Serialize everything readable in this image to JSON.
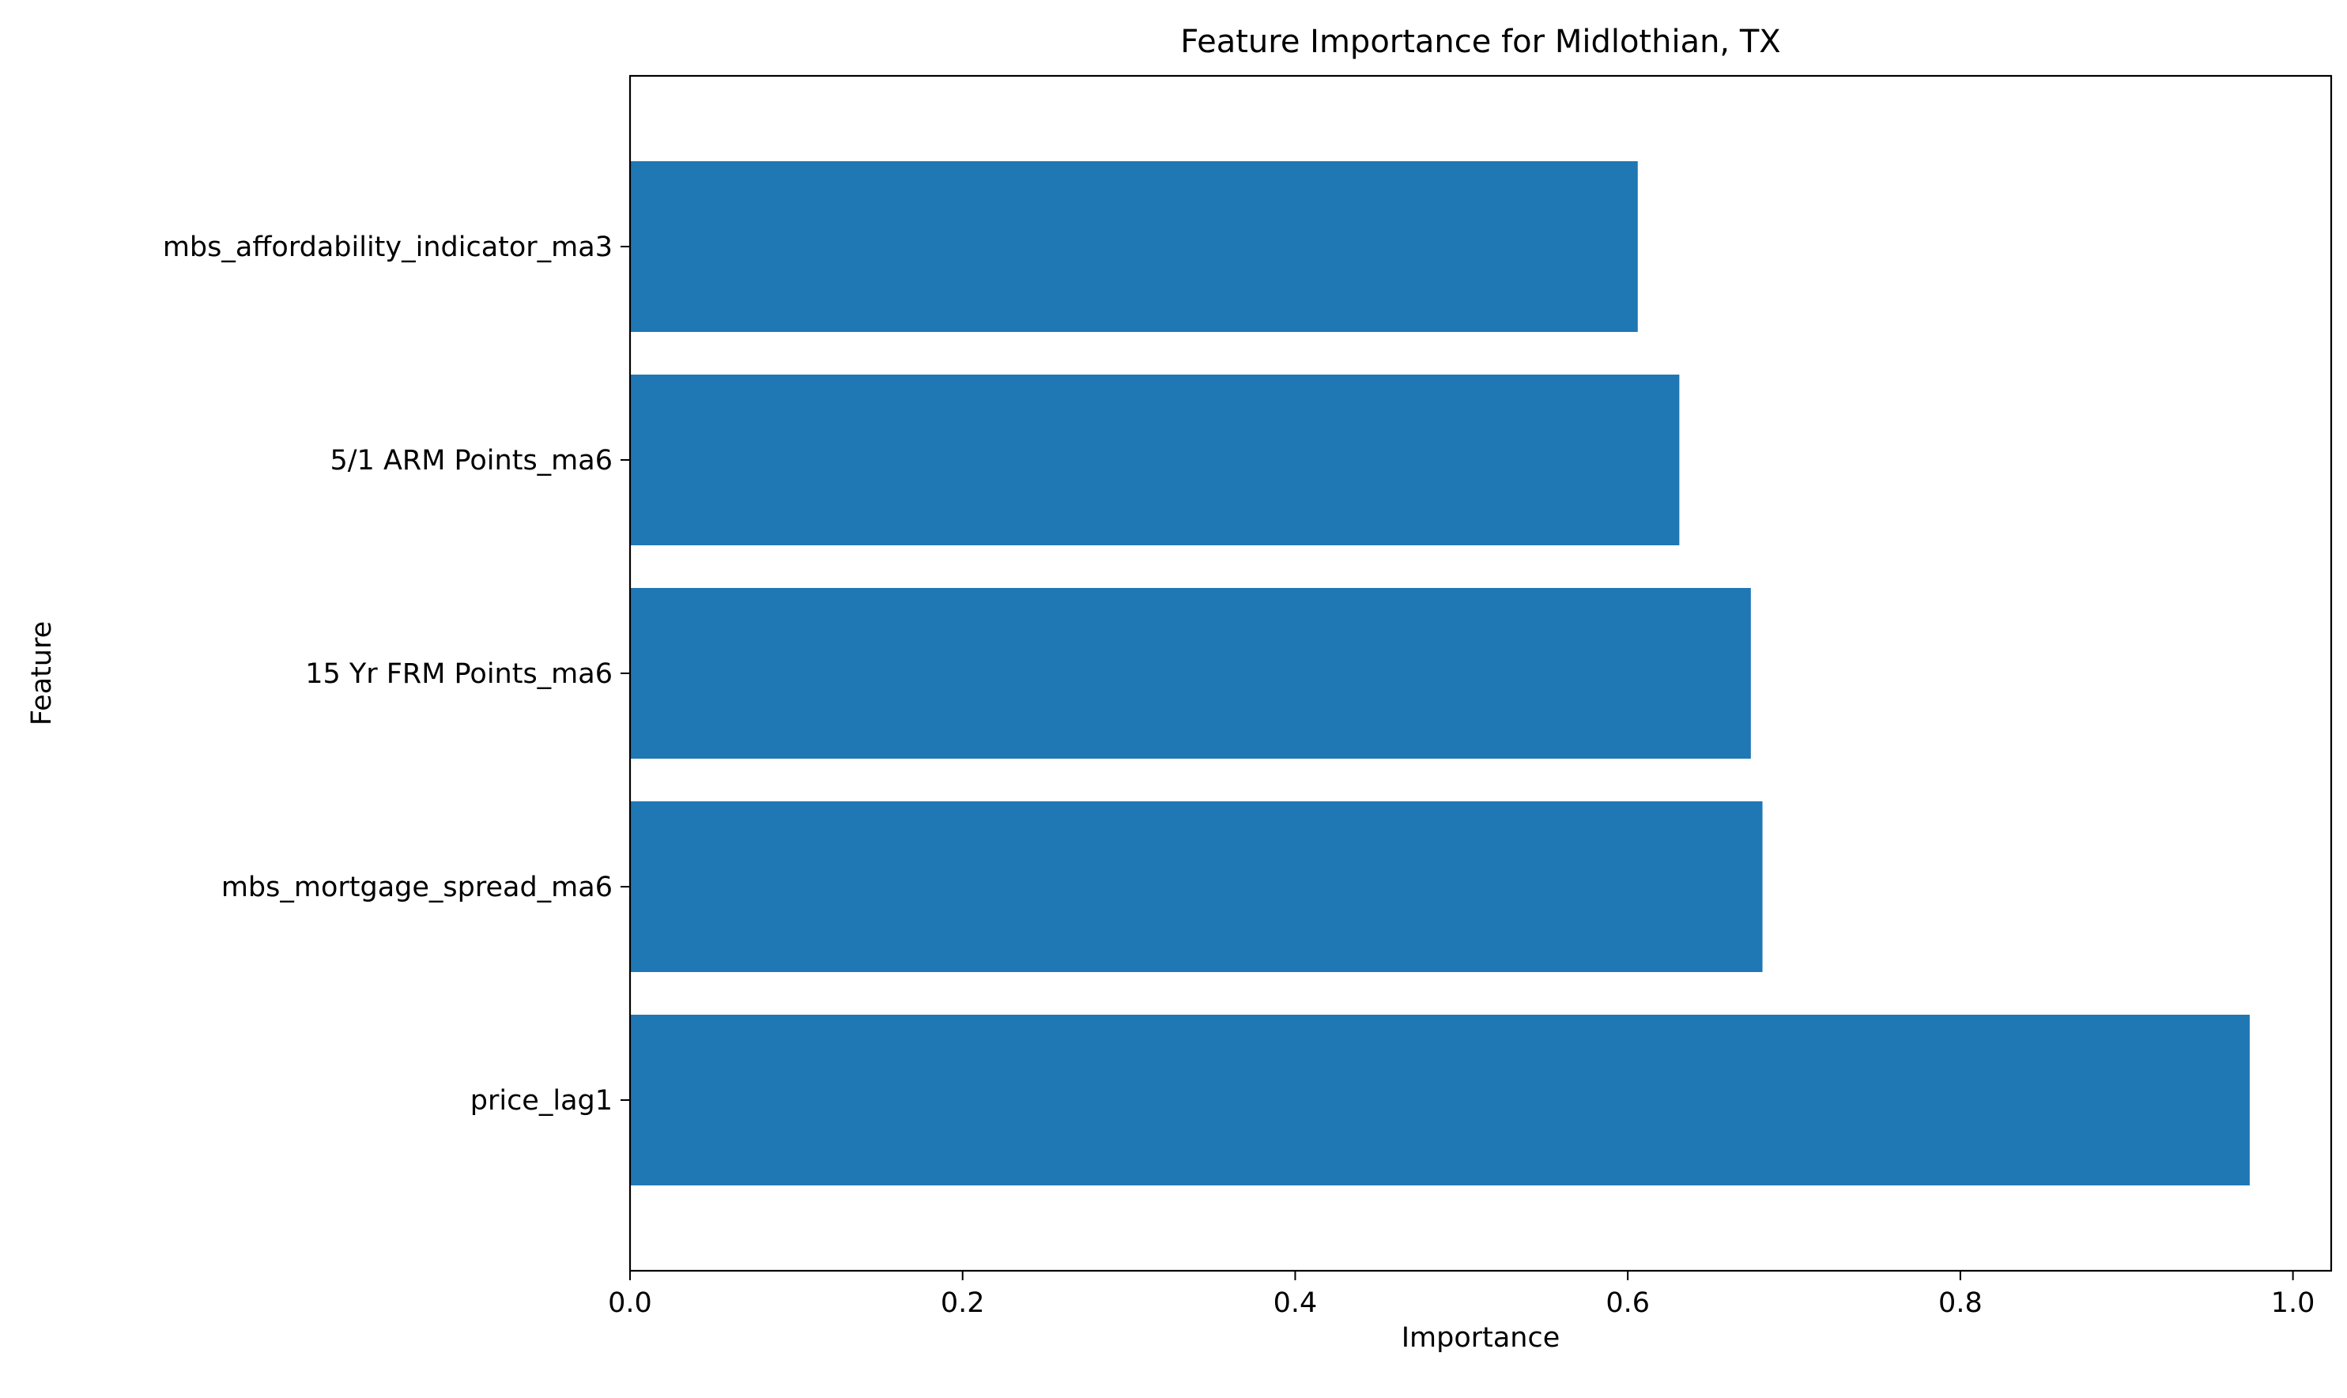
{
  "chart_data": {
    "type": "bar",
    "orientation": "horizontal",
    "title": "Feature Importance for Midlothian, TX",
    "xlabel": "Importance",
    "ylabel": "Feature",
    "categories": [
      "price_lag1",
      "mbs_mortgage_spread_ma6",
      "15 Yr FRM Points_ma6",
      "5/1 ARM Points_ma6",
      "mbs_affordability_indicator_ma3"
    ],
    "values": [
      0.974,
      0.681,
      0.674,
      0.631,
      0.606
    ],
    "xlim": [
      0.0,
      1.023
    ],
    "xticks": [
      "0.0",
      "0.2",
      "0.4",
      "0.6",
      "0.8",
      "1.0"
    ],
    "grid": false,
    "bar_color": "#1f77b4"
  }
}
